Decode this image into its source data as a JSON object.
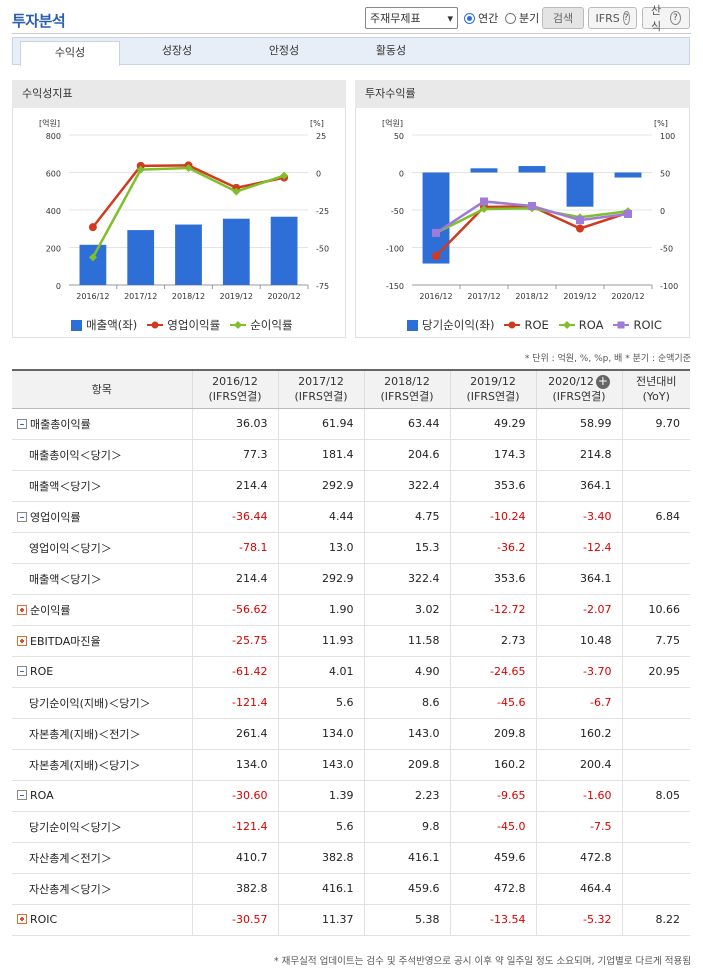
{
  "page_title": "투자분석",
  "controls": {
    "select_value": "주재무제표",
    "radio_annual": "연간",
    "radio_quarter": "분기",
    "search_btn": "검색",
    "ifrs_btn": "IFRS",
    "formula_btn": "산식",
    "help_glyph": "?"
  },
  "tabs": [
    "수익성",
    "성장성",
    "안정성",
    "활동성"
  ],
  "panels": {
    "left_title": "수익성지표",
    "right_title": "투자수익률"
  },
  "chart_data": [
    {
      "type": "bar+line",
      "title": "수익성지표",
      "categories": [
        "2016/12",
        "2017/12",
        "2018/12",
        "2019/12",
        "2020/12"
      ],
      "left_unit": "[억원]",
      "right_unit": "[%]",
      "left_ticks": [
        "800",
        "600",
        "400",
        "200",
        "0"
      ],
      "right_ticks": [
        "25",
        "0",
        "-25",
        "-50",
        "-75"
      ],
      "ylim_left": [
        0,
        800
      ],
      "ylim_right": [
        -75,
        25
      ],
      "series": [
        {
          "name": "매출액(좌)",
          "type": "bar",
          "axis": "left",
          "color": "#2d6fd6",
          "values": [
            214.4,
            292.9,
            322.4,
            353.6,
            364.1
          ]
        },
        {
          "name": "영업이익률",
          "type": "line",
          "axis": "right",
          "color": "#d23a1e",
          "values": [
            -36.44,
            4.44,
            4.75,
            -10.24,
            -3.4
          ]
        },
        {
          "name": "순이익률",
          "type": "line",
          "axis": "right",
          "color": "#7fbf2a",
          "values": [
            -56.62,
            1.9,
            3.02,
            -12.72,
            -2.07
          ]
        }
      ]
    },
    {
      "type": "bar+line",
      "title": "투자수익률",
      "categories": [
        "2016/12",
        "2017/12",
        "2018/12",
        "2019/12",
        "2020/12"
      ],
      "left_unit": "[억원]",
      "right_unit": "[%]",
      "left_ticks": [
        "50",
        "0",
        "-50",
        "-100",
        "-150"
      ],
      "right_ticks": [
        "100",
        "50",
        "0",
        "-50",
        "-100"
      ],
      "ylim_left": [
        -150,
        50
      ],
      "ylim_right": [
        -100,
        100
      ],
      "series": [
        {
          "name": "당기순이익(좌)",
          "type": "bar",
          "axis": "left",
          "color": "#2d6fd6",
          "values": [
            -121.4,
            5.6,
            8.6,
            -45.6,
            -6.7
          ]
        },
        {
          "name": "ROE",
          "type": "line",
          "axis": "right",
          "color": "#d23a1e",
          "values": [
            -61.42,
            4.01,
            4.9,
            -24.65,
            -3.7
          ]
        },
        {
          "name": "ROA",
          "type": "line",
          "axis": "right",
          "color": "#7fbf2a",
          "values": [
            -30.6,
            1.39,
            2.23,
            -9.65,
            -1.6
          ]
        },
        {
          "name": "ROIC",
          "type": "line",
          "axis": "right",
          "color": "#a07ad8",
          "values": [
            -30.57,
            11.37,
            5.38,
            -13.54,
            -5.32
          ]
        }
      ]
    }
  ],
  "unit_note": "* 단위 : 억원, %, %p, 배 * 분기 : 순액기준",
  "table": {
    "headers": [
      {
        "l1": "항목",
        "l2": ""
      },
      {
        "l1": "2016/12",
        "l2": "(IFRS연결)"
      },
      {
        "l1": "2017/12",
        "l2": "(IFRS연결)"
      },
      {
        "l1": "2018/12",
        "l2": "(IFRS연결)"
      },
      {
        "l1": "2019/12",
        "l2": "(IFRS연결)"
      },
      {
        "l1": "2020/12",
        "l2": "(IFRS연결)"
      },
      {
        "l1": "전년대비",
        "l2": "(YoY)"
      }
    ],
    "rows": [
      {
        "label": "매출총이익률",
        "type": "minus",
        "values": [
          "36.03",
          "61.94",
          "63.44",
          "49.29",
          "58.99",
          "9.70"
        ]
      },
      {
        "label": "매출총이익＜당기＞",
        "type": "sub",
        "values": [
          "77.3",
          "181.4",
          "204.6",
          "174.3",
          "214.8",
          ""
        ]
      },
      {
        "label": "매출액＜당기＞",
        "type": "sub",
        "values": [
          "214.4",
          "292.9",
          "322.4",
          "353.6",
          "364.1",
          ""
        ]
      },
      {
        "label": "영업이익률",
        "type": "minus",
        "values": [
          "-36.44",
          "4.44",
          "4.75",
          "-10.24",
          "-3.40",
          "6.84"
        ]
      },
      {
        "label": "영업이익＜당기＞",
        "type": "sub",
        "values": [
          "-78.1",
          "13.0",
          "15.3",
          "-36.2",
          "-12.4",
          ""
        ]
      },
      {
        "label": "매출액＜당기＞",
        "type": "sub",
        "values": [
          "214.4",
          "292.9",
          "322.4",
          "353.6",
          "364.1",
          ""
        ]
      },
      {
        "label": "순이익률",
        "type": "plus",
        "values": [
          "-56.62",
          "1.90",
          "3.02",
          "-12.72",
          "-2.07",
          "10.66"
        ]
      },
      {
        "label": "EBITDA마진율",
        "type": "plus",
        "values": [
          "-25.75",
          "11.93",
          "11.58",
          "2.73",
          "10.48",
          "7.75"
        ]
      },
      {
        "label": "ROE",
        "type": "minus",
        "values": [
          "-61.42",
          "4.01",
          "4.90",
          "-24.65",
          "-3.70",
          "20.95"
        ]
      },
      {
        "label": "당기순이익(지배)＜당기＞",
        "type": "sub",
        "values": [
          "-121.4",
          "5.6",
          "8.6",
          "-45.6",
          "-6.7",
          ""
        ]
      },
      {
        "label": "자본총계(지배)＜전기＞",
        "type": "sub",
        "values": [
          "261.4",
          "134.0",
          "143.0",
          "209.8",
          "160.2",
          ""
        ]
      },
      {
        "label": "자본총계(지배)＜당기＞",
        "type": "sub",
        "values": [
          "134.0",
          "143.0",
          "209.8",
          "160.2",
          "200.4",
          ""
        ]
      },
      {
        "label": "ROA",
        "type": "minus",
        "values": [
          "-30.60",
          "1.39",
          "2.23",
          "-9.65",
          "-1.60",
          "8.05"
        ]
      },
      {
        "label": "당기순이익＜당기＞",
        "type": "sub",
        "values": [
          "-121.4",
          "5.6",
          "9.8",
          "-45.0",
          "-7.5",
          ""
        ]
      },
      {
        "label": "자산총계＜전기＞",
        "type": "sub",
        "values": [
          "410.7",
          "382.8",
          "416.1",
          "459.6",
          "472.8",
          ""
        ]
      },
      {
        "label": "자산총계＜당기＞",
        "type": "sub",
        "values": [
          "382.8",
          "416.1",
          "459.6",
          "472.8",
          "464.4",
          ""
        ]
      },
      {
        "label": "ROIC",
        "type": "plus",
        "values": [
          "-30.57",
          "11.37",
          "5.38",
          "-13.54",
          "-5.32",
          "8.22"
        ]
      }
    ]
  },
  "expand_icon_glyph": "+",
  "footnote": "* 재무실적 업데이트는 검수 및 주석반영으로 공시 이후 약 일주일 정도 소요되며, 기업별로 다르게 적용됨"
}
